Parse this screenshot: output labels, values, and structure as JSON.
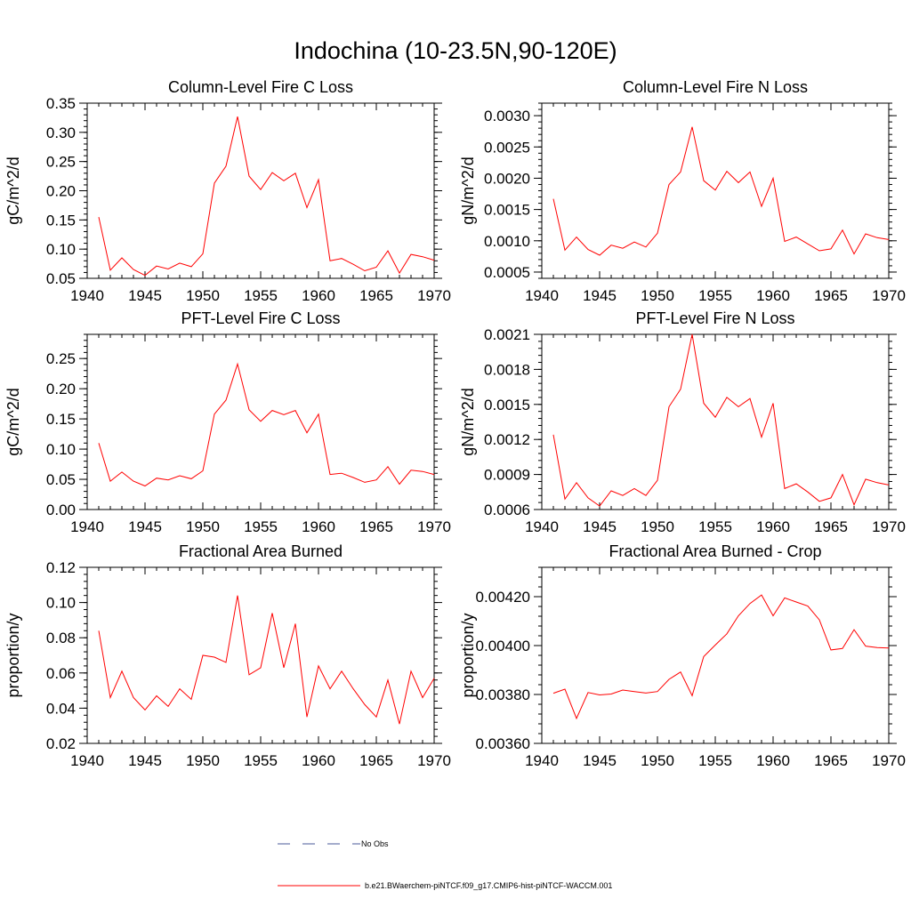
{
  "page_title": "Indochina (10-23.5N,90-120E)",
  "legend": {
    "entries": [
      {
        "label": "No Obs",
        "style": "dashed",
        "color": "#4a5a9a"
      },
      {
        "label": "b.e21.BWaerchem-piNTCF.f09_g17.CMIP6-hist-piNTCF-WACCM.001",
        "style": "solid",
        "color": "#ff0000"
      }
    ]
  },
  "chart_data": [
    {
      "type": "line",
      "title": "Column-Level Fire C Loss",
      "xlabel": "",
      "ylabel": "gC/m^2/d",
      "xlim": [
        1940,
        1970
      ],
      "ylim": [
        0.05,
        0.35
      ],
      "xticks": [
        "1940",
        "1945",
        "1950",
        "1955",
        "1960",
        "1965",
        "1970"
      ],
      "yticks": [
        "0.05",
        "0.10",
        "0.15",
        "0.20",
        "0.25",
        "0.30",
        "0.35"
      ],
      "x": [
        1941,
        1942,
        1943,
        1944,
        1945,
        1946,
        1947,
        1948,
        1949,
        1950,
        1951,
        1952,
        1953,
        1954,
        1955,
        1956,
        1957,
        1958,
        1959,
        1960,
        1961,
        1962,
        1963,
        1964,
        1965,
        1966,
        1967,
        1968,
        1969,
        1970
      ],
      "series": [
        {
          "color": "#ff0000",
          "values": [
            0.155,
            0.064,
            0.085,
            0.065,
            0.055,
            0.071,
            0.066,
            0.076,
            0.07,
            0.092,
            0.213,
            0.242,
            0.327,
            0.225,
            0.202,
            0.231,
            0.217,
            0.23,
            0.171,
            0.219,
            0.08,
            0.084,
            0.074,
            0.063,
            0.069,
            0.097,
            0.059,
            0.091,
            0.087,
            0.081
          ]
        }
      ]
    },
    {
      "type": "line",
      "title": "Column-Level Fire N Loss",
      "xlabel": "",
      "ylabel": "gN/m^2/d",
      "xlim": [
        1940,
        1970
      ],
      "ylim": [
        0.0004,
        0.0032
      ],
      "xticks": [
        "1940",
        "1945",
        "1950",
        "1955",
        "1960",
        "1965",
        "1970"
      ],
      "yticks": [
        "0.0005",
        "0.0010",
        "0.0015",
        "0.0020",
        "0.0025",
        "0.0030"
      ],
      "x": [
        1941,
        1942,
        1943,
        1944,
        1945,
        1946,
        1947,
        1948,
        1949,
        1950,
        1951,
        1952,
        1953,
        1954,
        1955,
        1956,
        1957,
        1958,
        1959,
        1960,
        1961,
        1962,
        1963,
        1964,
        1965,
        1966,
        1967,
        1968,
        1969,
        1970
      ],
      "series": [
        {
          "color": "#ff0000",
          "values": [
            0.00167,
            0.00085,
            0.00106,
            0.00086,
            0.00077,
            0.00093,
            0.00088,
            0.00098,
            0.0009,
            0.00112,
            0.0019,
            0.0021,
            0.00282,
            0.00196,
            0.00181,
            0.00211,
            0.00193,
            0.0021,
            0.00155,
            0.002,
            0.00099,
            0.00106,
            0.00095,
            0.00084,
            0.00087,
            0.00117,
            0.00079,
            0.00111,
            0.00105,
            0.00102
          ]
        }
      ]
    },
    {
      "type": "line",
      "title": "PFT-Level Fire C Loss",
      "xlabel": "",
      "ylabel": "gC/m^2/d",
      "xlim": [
        1940,
        1970
      ],
      "ylim": [
        0.0,
        0.29
      ],
      "xticks": [
        "1940",
        "1945",
        "1950",
        "1955",
        "1960",
        "1965",
        "1970"
      ],
      "yticks": [
        "0.00",
        "0.05",
        "0.10",
        "0.15",
        "0.20",
        "0.25"
      ],
      "x": [
        1941,
        1942,
        1943,
        1944,
        1945,
        1946,
        1947,
        1948,
        1949,
        1950,
        1951,
        1952,
        1953,
        1954,
        1955,
        1956,
        1957,
        1958,
        1959,
        1960,
        1961,
        1962,
        1963,
        1964,
        1965,
        1966,
        1967,
        1968,
        1969,
        1970
      ],
      "series": [
        {
          "color": "#ff0000",
          "values": [
            0.11,
            0.047,
            0.062,
            0.047,
            0.039,
            0.052,
            0.049,
            0.056,
            0.051,
            0.064,
            0.158,
            0.181,
            0.241,
            0.165,
            0.146,
            0.164,
            0.157,
            0.164,
            0.127,
            0.158,
            0.058,
            0.06,
            0.053,
            0.045,
            0.049,
            0.071,
            0.042,
            0.065,
            0.063,
            0.058
          ]
        }
      ]
    },
    {
      "type": "line",
      "title": "PFT-Level Fire N Loss",
      "xlabel": "",
      "ylabel": "gN/m^2/d",
      "xlim": [
        1940,
        1970
      ],
      "ylim": [
        0.0006,
        0.0021
      ],
      "xticks": [
        "1940",
        "1945",
        "1950",
        "1955",
        "1960",
        "1965",
        "1970"
      ],
      "yticks": [
        "0.0006",
        "0.0009",
        "0.0012",
        "0.0015",
        "0.0018",
        "0.0021"
      ],
      "x": [
        1941,
        1942,
        1943,
        1944,
        1945,
        1946,
        1947,
        1948,
        1949,
        1950,
        1951,
        1952,
        1953,
        1954,
        1955,
        1956,
        1957,
        1958,
        1959,
        1960,
        1961,
        1962,
        1963,
        1964,
        1965,
        1966,
        1967,
        1968,
        1969,
        1970
      ],
      "series": [
        {
          "color": "#ff0000",
          "values": [
            0.00124,
            0.00069,
            0.00083,
            0.0007,
            0.00063,
            0.00076,
            0.00072,
            0.00078,
            0.00072,
            0.00085,
            0.00148,
            0.00163,
            0.0021,
            0.00151,
            0.00139,
            0.00156,
            0.00148,
            0.00155,
            0.00122,
            0.00151,
            0.00078,
            0.00082,
            0.00075,
            0.00067,
            0.0007,
            0.0009,
            0.00064,
            0.00086,
            0.00083,
            0.00081
          ]
        }
      ]
    },
    {
      "type": "line",
      "title": "Fractional Area Burned",
      "xlabel": "",
      "ylabel": "proportion/y",
      "xlim": [
        1940,
        1970
      ],
      "ylim": [
        0.02,
        0.12
      ],
      "xticks": [
        "1940",
        "1945",
        "1950",
        "1955",
        "1960",
        "1965",
        "1970"
      ],
      "yticks": [
        "0.02",
        "0.04",
        "0.06",
        "0.08",
        "0.10",
        "0.12"
      ],
      "x": [
        1941,
        1942,
        1943,
        1944,
        1945,
        1946,
        1947,
        1948,
        1949,
        1950,
        1951,
        1952,
        1953,
        1954,
        1955,
        1956,
        1957,
        1958,
        1959,
        1960,
        1961,
        1962,
        1963,
        1964,
        1965,
        1966,
        1967,
        1968,
        1969,
        1970
      ],
      "series": [
        {
          "color": "#ff0000",
          "values": [
            0.084,
            0.046,
            0.061,
            0.046,
            0.039,
            0.047,
            0.041,
            0.051,
            0.045,
            0.07,
            0.069,
            0.066,
            0.104,
            0.059,
            0.063,
            0.094,
            0.063,
            0.088,
            0.035,
            0.064,
            0.051,
            0.061,
            0.051,
            0.042,
            0.035,
            0.056,
            0.031,
            0.061,
            0.046,
            0.057
          ]
        }
      ]
    },
    {
      "type": "line",
      "title": "Fractional Area Burned - Crop",
      "xlabel": "",
      "ylabel": "proportion/y",
      "xlim": [
        1940,
        1970
      ],
      "ylim": [
        0.0036,
        0.00432
      ],
      "xticks": [
        "1940",
        "1945",
        "1950",
        "1955",
        "1960",
        "1965",
        "1970"
      ],
      "yticks": [
        "0.00360",
        "0.00380",
        "0.00400",
        "0.00420"
      ],
      "x": [
        1941,
        1942,
        1943,
        1944,
        1945,
        1946,
        1947,
        1948,
        1949,
        1950,
        1951,
        1952,
        1953,
        1954,
        1955,
        1956,
        1957,
        1958,
        1959,
        1960,
        1961,
        1962,
        1963,
        1964,
        1965,
        1966,
        1967,
        1968,
        1969,
        1970
      ],
      "series": [
        {
          "color": "#ff0000",
          "values": [
            0.003805,
            0.003822,
            0.003702,
            0.003808,
            0.003798,
            0.003802,
            0.003818,
            0.003812,
            0.003806,
            0.003812,
            0.003862,
            0.003892,
            0.003795,
            0.003955,
            0.004002,
            0.004048,
            0.004122,
            0.004172,
            0.004207,
            0.004122,
            0.004195,
            0.004178,
            0.004162,
            0.004105,
            0.003982,
            0.003988,
            0.004065,
            0.003998,
            0.003992,
            0.00399
          ]
        }
      ]
    }
  ]
}
